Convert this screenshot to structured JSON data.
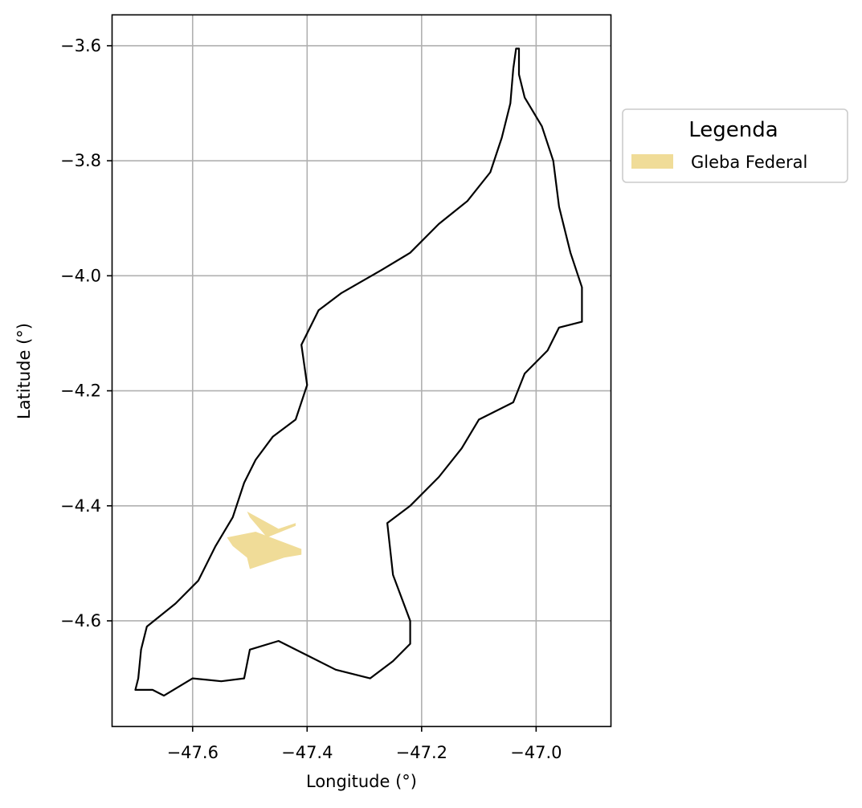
{
  "chart_data": {
    "type": "map",
    "xlabel": "Longitude (°)",
    "ylabel": "Latitude (°)",
    "xlim": [
      -47.74,
      -46.87
    ],
    "ylim": [
      -4.783,
      -3.547
    ],
    "grid": true,
    "x_ticks": [
      {
        "value": -47.6,
        "label": "−47.6"
      },
      {
        "value": -47.4,
        "label": "−47.4"
      },
      {
        "value": -47.2,
        "label": "−47.2"
      },
      {
        "value": -47.0,
        "label": "−47.0"
      }
    ],
    "y_ticks": [
      {
        "value": -3.6,
        "label": "−3.6"
      },
      {
        "value": -3.8,
        "label": "−3.8"
      },
      {
        "value": -4.0,
        "label": "−4.0"
      },
      {
        "value": -4.2,
        "label": "−4.2"
      },
      {
        "value": -4.4,
        "label": "−4.4"
      },
      {
        "value": -4.6,
        "label": "−4.6"
      }
    ],
    "legend": {
      "title": "Legenda",
      "placement": "outside-right",
      "entries": [
        {
          "label": "Gleba Federal",
          "color": "#f0dc98"
        }
      ]
    },
    "outline_color": "#000000",
    "boundary": [
      [
        -47.035,
        -3.605
      ],
      [
        -47.04,
        -3.64
      ],
      [
        -47.045,
        -3.7
      ],
      [
        -47.06,
        -3.76
      ],
      [
        -47.08,
        -3.82
      ],
      [
        -47.12,
        -3.87
      ],
      [
        -47.17,
        -3.91
      ],
      [
        -47.22,
        -3.96
      ],
      [
        -47.27,
        -3.99
      ],
      [
        -47.34,
        -4.03
      ],
      [
        -47.38,
        -4.06
      ],
      [
        -47.41,
        -4.12
      ],
      [
        -47.4,
        -4.19
      ],
      [
        -47.42,
        -4.25
      ],
      [
        -47.46,
        -4.28
      ],
      [
        -47.49,
        -4.32
      ],
      [
        -47.51,
        -4.36
      ],
      [
        -47.53,
        -4.42
      ],
      [
        -47.56,
        -4.47
      ],
      [
        -47.59,
        -4.53
      ],
      [
        -47.63,
        -4.57
      ],
      [
        -47.68,
        -4.61
      ],
      [
        -47.69,
        -4.65
      ],
      [
        -47.695,
        -4.7
      ],
      [
        -47.7,
        -4.72
      ],
      [
        -47.67,
        -4.72
      ],
      [
        -47.65,
        -4.73
      ],
      [
        -47.6,
        -4.7
      ],
      [
        -47.55,
        -4.705
      ],
      [
        -47.51,
        -4.7
      ],
      [
        -47.5,
        -4.65
      ],
      [
        -47.45,
        -4.635
      ],
      [
        -47.4,
        -4.66
      ],
      [
        -47.35,
        -4.685
      ],
      [
        -47.29,
        -4.7
      ],
      [
        -47.25,
        -4.67
      ],
      [
        -47.22,
        -4.64
      ],
      [
        -47.22,
        -4.6
      ],
      [
        -47.25,
        -4.52
      ],
      [
        -47.26,
        -4.43
      ],
      [
        -47.22,
        -4.4
      ],
      [
        -47.17,
        -4.35
      ],
      [
        -47.13,
        -4.3
      ],
      [
        -47.1,
        -4.25
      ],
      [
        -47.04,
        -4.22
      ],
      [
        -47.02,
        -4.17
      ],
      [
        -46.98,
        -4.13
      ],
      [
        -46.96,
        -4.09
      ],
      [
        -46.92,
        -4.08
      ],
      [
        -46.92,
        -4.02
      ],
      [
        -46.94,
        -3.96
      ],
      [
        -46.96,
        -3.88
      ],
      [
        -46.97,
        -3.8
      ],
      [
        -46.99,
        -3.74
      ],
      [
        -47.02,
        -3.69
      ],
      [
        -47.03,
        -3.65
      ],
      [
        -47.03,
        -3.605
      ]
    ],
    "gleba_federal": [
      [
        [
          -47.54,
          -4.455
        ],
        [
          -47.49,
          -4.445
        ],
        [
          -47.45,
          -4.46
        ],
        [
          -47.41,
          -4.475
        ],
        [
          -47.41,
          -4.485
        ],
        [
          -47.44,
          -4.49
        ],
        [
          -47.47,
          -4.5
        ],
        [
          -47.5,
          -4.51
        ],
        [
          -47.505,
          -4.49
        ],
        [
          -47.53,
          -4.47
        ]
      ],
      [
        [
          -47.505,
          -4.41
        ],
        [
          -47.45,
          -4.44
        ],
        [
          -47.42,
          -4.43
        ],
        [
          -47.42,
          -4.435
        ],
        [
          -47.47,
          -4.455
        ],
        [
          -47.5,
          -4.42
        ]
      ]
    ]
  }
}
